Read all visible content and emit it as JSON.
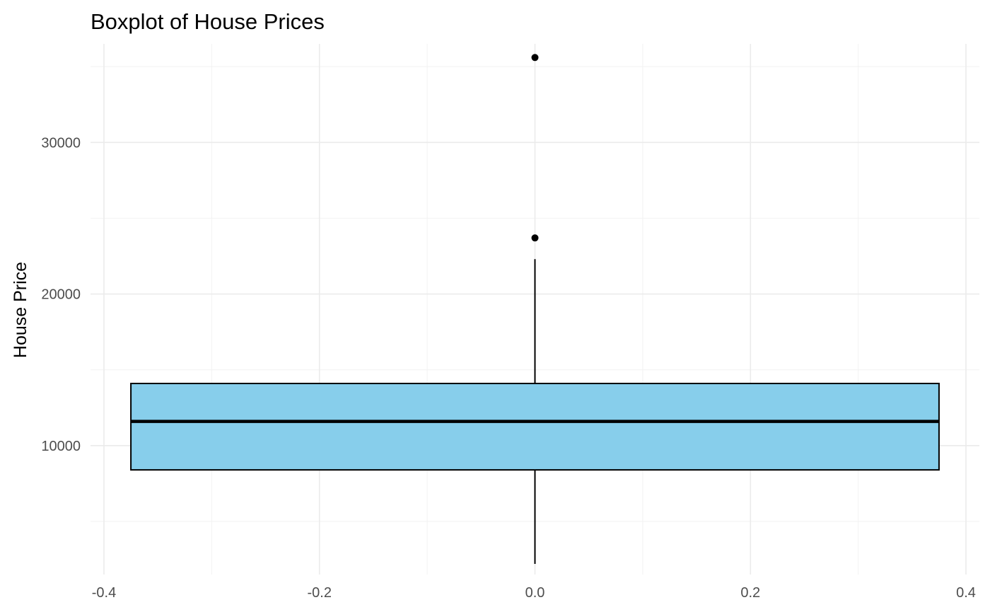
{
  "chart_data": {
    "type": "boxplot",
    "title": "Boxplot of House Prices",
    "xlabel": "",
    "ylabel": "House Price",
    "x_ticks": [
      "-0.4",
      "-0.2",
      "0.0",
      "0.2",
      "0.4"
    ],
    "y_ticks": [
      "10000",
      "20000",
      "30000"
    ],
    "xlim": [
      -0.4,
      0.4
    ],
    "ylim": [
      1500,
      36500
    ],
    "grid": true,
    "box": {
      "x": 0.0,
      "half_width": 0.375,
      "whisker_low": 2200,
      "q1": 8400,
      "median": 11600,
      "q3": 14100,
      "whisker_high": 22300,
      "fill": "#87CEEB",
      "stroke": "#000000"
    },
    "outliers": [
      23700,
      35600
    ]
  }
}
